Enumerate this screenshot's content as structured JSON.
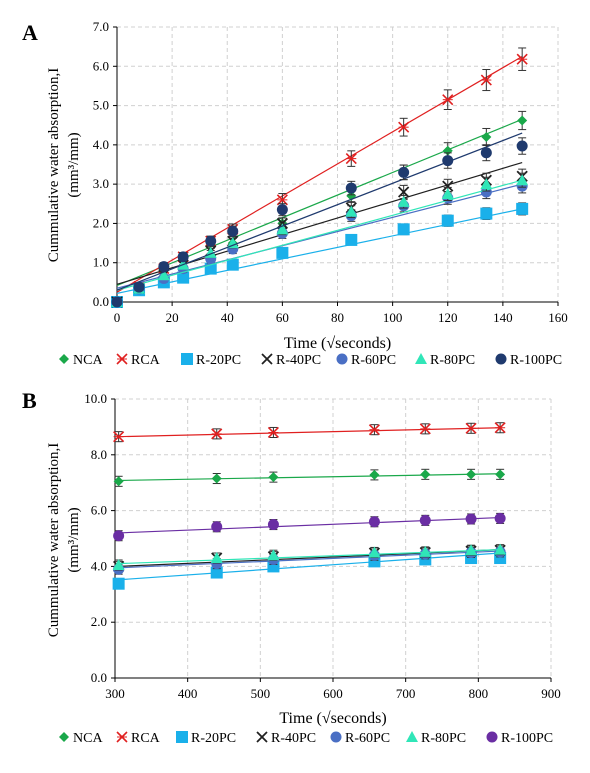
{
  "chart_data": [
    {
      "panel_label": "A",
      "type": "scatter",
      "xlabel": "Time (√seconds)",
      "ylabel_line1": "Cummulative water absorption,I",
      "ylabel_line2": "(mm³/mm)",
      "xlim": [
        0,
        160
      ],
      "ylim": [
        0,
        7
      ],
      "xticks": [
        "0",
        "20",
        "40",
        "60",
        "80",
        "100",
        "120",
        "140",
        "160"
      ],
      "yticks": [
        "0.0",
        "1.0",
        "2.0",
        "3.0",
        "4.0",
        "5.0",
        "6.0",
        "7.0"
      ],
      "grid": true,
      "legend_position": "bottom",
      "x": [
        0,
        8,
        17,
        24,
        34,
        42,
        60,
        85,
        104,
        120,
        134,
        147
      ],
      "series": [
        {
          "name": "NCA",
          "color": "#1aa84a",
          "marker": "diamond",
          "values": [
            0,
            0.32,
            0.65,
            0.9,
            1.2,
            1.5,
            2.0,
            2.7,
            3.3,
            3.85,
            4.2,
            4.62
          ],
          "fit": [
            0.42,
            4.65
          ]
        },
        {
          "name": "RCA",
          "color": "#e02020",
          "marker": "cross",
          "values": [
            0,
            0.4,
            0.85,
            1.15,
            1.55,
            1.85,
            2.6,
            3.65,
            4.45,
            5.15,
            5.65,
            6.18
          ],
          "fit": [
            0.25,
            6.25
          ]
        },
        {
          "name": "R-20PC",
          "color": "#1ab0ea",
          "marker": "square",
          "values": [
            0,
            0.3,
            0.5,
            0.62,
            0.85,
            0.95,
            1.25,
            1.58,
            1.85,
            2.07,
            2.25,
            2.37
          ],
          "fit": [
            0.22,
            2.37
          ]
        },
        {
          "name": "R-40PC",
          "color": "#202020",
          "marker": "x",
          "values": [
            0,
            0.35,
            0.7,
            0.95,
            1.3,
            1.55,
            2.0,
            2.4,
            2.8,
            2.95,
            3.1,
            3.2
          ],
          "fit": [
            0.45,
            3.55
          ]
        },
        {
          "name": "R-60PC",
          "color": "#4a6fc4",
          "marker": "circle",
          "values": [
            0,
            0.33,
            0.6,
            0.85,
            1.1,
            1.35,
            1.75,
            2.2,
            2.45,
            2.65,
            2.8,
            2.95
          ],
          "fit": [
            0.35,
            3.0
          ]
        },
        {
          "name": "R-80PC",
          "color": "#30e6b8",
          "marker": "triangle",
          "values": [
            0,
            0.34,
            0.68,
            0.95,
            1.25,
            1.5,
            1.85,
            2.3,
            2.55,
            2.75,
            3.0,
            3.1
          ],
          "fit": [
            0.3,
            3.1
          ]
        },
        {
          "name": "R-100PC",
          "color": "#1f3a6e",
          "marker": "circle",
          "values": [
            0,
            0.38,
            0.9,
            1.15,
            1.55,
            1.8,
            2.35,
            2.9,
            3.3,
            3.6,
            3.8,
            3.97
          ],
          "fit": [
            0.3,
            4.3
          ]
        }
      ]
    },
    {
      "panel_label": "B",
      "type": "scatter",
      "xlabel": "Time (√seconds)",
      "ylabel_line1": "Cummulative water absorption,I",
      "ylabel_line2": "(mm³/mm)",
      "xlim": [
        300,
        900
      ],
      "ylim": [
        0,
        10
      ],
      "xticks": [
        "300",
        "400",
        "500",
        "600",
        "700",
        "800",
        "900"
      ],
      "yticks": [
        "0.0",
        "2.0",
        "4.0",
        "6.0",
        "8.0",
        "10.0"
      ],
      "grid": true,
      "legend_position": "bottom",
      "x": [
        305,
        440,
        518,
        657,
        727,
        790,
        830
      ],
      "series": [
        {
          "name": "NCA",
          "color": "#1aa84a",
          "marker": "diamond",
          "values": [
            7.05,
            7.15,
            7.2,
            7.28,
            7.3,
            7.3,
            7.3
          ],
          "fit": [
            7.08,
            7.32
          ]
        },
        {
          "name": "RCA",
          "color": "#e02020",
          "marker": "cross",
          "values": [
            8.65,
            8.75,
            8.8,
            8.9,
            8.93,
            8.95,
            8.97
          ],
          "fit": [
            8.65,
            8.97
          ]
        },
        {
          "name": "R-20PC",
          "color": "#1ab0ea",
          "marker": "square",
          "values": [
            3.38,
            3.78,
            4.0,
            4.18,
            4.25,
            4.3,
            4.3
          ],
          "fit": [
            3.52,
            4.48
          ]
        },
        {
          "name": "R-40PC",
          "color": "#202020",
          "marker": "x",
          "values": [
            4.0,
            4.3,
            4.35,
            4.48,
            4.5,
            4.55,
            4.58
          ],
          "fit": [
            4.0,
            4.6
          ]
        },
        {
          "name": "R-60PC",
          "color": "#4a6fc4",
          "marker": "circle",
          "values": [
            3.9,
            4.1,
            4.25,
            4.4,
            4.45,
            4.5,
            4.52
          ],
          "fit": [
            3.95,
            4.55
          ]
        },
        {
          "name": "R-80PC",
          "color": "#30e6b8",
          "marker": "triangle",
          "values": [
            4.05,
            4.3,
            4.4,
            4.5,
            4.52,
            4.58,
            4.6
          ],
          "fit": [
            4.1,
            4.6
          ]
        },
        {
          "name": "R-100PC",
          "color": "#6a2ea3",
          "marker": "circle",
          "values": [
            5.1,
            5.42,
            5.5,
            5.6,
            5.65,
            5.7,
            5.72
          ],
          "fit": [
            5.2,
            5.75
          ]
        }
      ]
    }
  ]
}
